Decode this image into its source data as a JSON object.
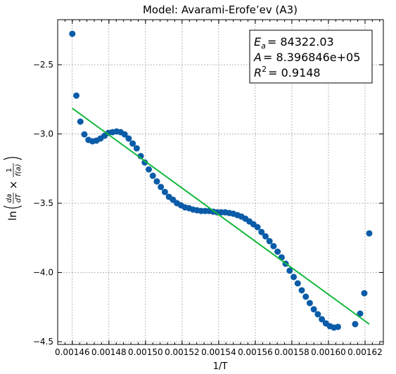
{
  "chart_data": {
    "type": "scatter",
    "title": "Model: Avarami-Erofe’ev (A3)",
    "xlabel": "1/T",
    "ylabel": {
      "function": "ln",
      "numerator1": "da",
      "denominator1": "dT",
      "operator": "×",
      "numerator2": "1",
      "denominator2": "f(a)"
    },
    "annotations": [
      {
        "symbol": "E",
        "sub": "a",
        "text": "= 84322.03"
      },
      {
        "symbol": "A",
        "text": "= 8.396846e+05"
      },
      {
        "symbol": "R",
        "sup": "2",
        "text": "= 0.9148"
      }
    ],
    "xlim": [
      0.001452,
      0.00163
    ],
    "ylim": [
      -4.52,
      -2.175
    ],
    "xticks": [
      0.00146,
      0.00148,
      {
        "value": 0.0015,
        "label": "0.00150"
      },
      0.00152,
      0.00154,
      0.00156,
      0.00158,
      {
        "value": 0.0016,
        "label": "0.00160"
      },
      0.00162
    ],
    "yticks": [
      {
        "value": -2.5,
        "label": "−2.5"
      },
      {
        "value": -3.0,
        "label": "−3.0"
      },
      {
        "value": -3.5,
        "label": "−3.5"
      },
      {
        "value": -4.0,
        "label": "−4.0"
      },
      {
        "value": -4.5,
        "label": "−4.5"
      }
    ],
    "grid": true,
    "series": [
      {
        "kind": "points",
        "color": "#0b5ca8",
        "x": [
          0.00146,
          0.0014622,
          0.0014644,
          0.0014666,
          0.0014688,
          0.001471,
          0.0014732,
          0.0014754,
          0.0014776,
          0.0014798,
          0.001482,
          0.0014842,
          0.0014864,
          0.0014886,
          0.0014908,
          0.001493,
          0.0014952,
          0.0014974,
          0.0014996,
          0.0015018,
          0.001504,
          0.0015062,
          0.0015084,
          0.0015106,
          0.0015128,
          0.001515,
          0.0015172,
          0.0015194,
          0.0015216,
          0.0015238,
          0.001526,
          0.0015282,
          0.0015304,
          0.0015326,
          0.0015348,
          0.001537,
          0.0015392,
          0.0015414,
          0.0015436,
          0.0015458,
          0.001548,
          0.0015502,
          0.0015524,
          0.0015546,
          0.0015568,
          0.001559,
          0.0015612,
          0.0015634,
          0.0015656,
          0.0015678,
          0.00157,
          0.0015722,
          0.0015744,
          0.0015766,
          0.0015788,
          0.001581,
          0.0015832,
          0.0015854,
          0.0015876,
          0.0015898,
          0.001592,
          0.0015942,
          0.0015964,
          0.0015986,
          0.0016008,
          0.001603,
          0.0016052,
          0.0016146,
          0.0016173,
          0.0016196,
          0.0016223
        ],
        "values": [
          -2.277,
          -2.723,
          -2.911,
          -3.003,
          -3.043,
          -3.053,
          -3.048,
          -3.033,
          -3.013,
          -2.992,
          -2.987,
          -2.982,
          -2.987,
          -3.003,
          -3.033,
          -3.069,
          -3.104,
          -3.16,
          -3.206,
          -3.256,
          -3.302,
          -3.343,
          -3.383,
          -3.419,
          -3.454,
          -3.475,
          -3.5,
          -3.515,
          -3.53,
          -3.536,
          -3.546,
          -3.551,
          -3.556,
          -3.556,
          -3.556,
          -3.561,
          -3.566,
          -3.566,
          -3.566,
          -3.571,
          -3.576,
          -3.586,
          -3.596,
          -3.612,
          -3.632,
          -3.652,
          -3.673,
          -3.708,
          -3.739,
          -3.774,
          -3.81,
          -3.85,
          -3.891,
          -3.937,
          -3.987,
          -4.033,
          -4.079,
          -4.129,
          -4.175,
          -4.221,
          -4.266,
          -4.302,
          -4.338,
          -4.368,
          -4.388,
          -4.398,
          -4.393,
          -4.373,
          -4.297,
          -4.15,
          -3.718
        ]
      },
      {
        "kind": "line",
        "color": "#12b83c",
        "x": [
          0.00146,
          0.0016223
        ],
        "values": [
          -2.815,
          -4.373
        ]
      }
    ]
  }
}
